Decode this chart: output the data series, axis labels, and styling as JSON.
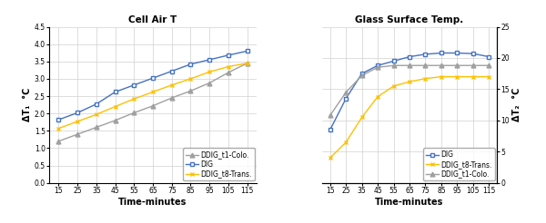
{
  "time": [
    15,
    25,
    35,
    45,
    55,
    65,
    75,
    85,
    95,
    105,
    115
  ],
  "left_DIG": [
    1.82,
    2.02,
    2.27,
    2.62,
    2.82,
    3.02,
    3.22,
    3.42,
    3.55,
    3.68,
    3.8
  ],
  "left_t1_colo": [
    1.2,
    1.4,
    1.6,
    1.8,
    2.02,
    2.22,
    2.45,
    2.65,
    2.88,
    3.18,
    3.45
  ],
  "left_t8_trans": [
    1.57,
    1.77,
    1.97,
    2.2,
    2.42,
    2.62,
    2.82,
    3.0,
    3.2,
    3.35,
    3.45
  ],
  "right_DIG": [
    8.5,
    13.5,
    17.5,
    18.8,
    19.5,
    20.2,
    20.6,
    20.8,
    20.8,
    20.7,
    20.2
  ],
  "right_t8_trans": [
    4.0,
    6.5,
    10.5,
    13.8,
    15.5,
    16.2,
    16.7,
    17.0,
    17.0,
    17.0,
    17.0
  ],
  "right_t1_colo": [
    10.8,
    14.5,
    17.2,
    18.5,
    18.8,
    18.8,
    18.8,
    18.8,
    18.8,
    18.8,
    18.8
  ],
  "left_title": "Cell Air T",
  "right_title": "Glass Surface Temp.",
  "xlabel": "Time-minutes",
  "left_ylim": [
    0,
    4.5
  ],
  "left_yticks": [
    0,
    0.5,
    1.0,
    1.5,
    2.0,
    2.5,
    3.0,
    3.5,
    4.0,
    4.5
  ],
  "right_ylim": [
    0,
    25
  ],
  "right_yticks": [
    0,
    5,
    10,
    15,
    20,
    25
  ],
  "xticks": [
    15,
    25,
    35,
    45,
    55,
    65,
    75,
    85,
    95,
    105,
    115
  ],
  "color_DIG": "#4472C4",
  "color_t1_colo": "#A0A0A0",
  "color_t8_trans": "#FFC000",
  "bg_color": "#FFFFFF",
  "grid_color": "#D0D0D0"
}
